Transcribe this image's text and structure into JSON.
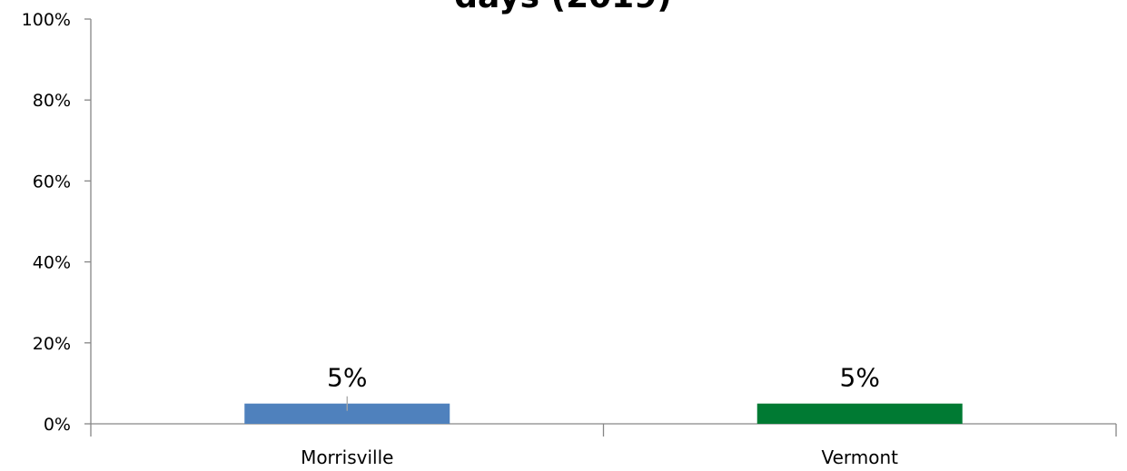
{
  "chart_data": {
    "type": "bar",
    "title": "days (2019)",
    "xlabel": "",
    "ylabel": "",
    "categories": [
      "Morrisville",
      "Vermont"
    ],
    "values": [
      5,
      5
    ],
    "data_labels": [
      "5%",
      "5%"
    ],
    "bar_colors": [
      "#4f81bd",
      "#007a33"
    ],
    "ylim": [
      0,
      100
    ],
    "yticks": [
      0,
      20,
      40,
      60,
      80,
      100
    ],
    "ytick_labels": [
      "0%",
      "20%",
      "40%",
      "60%",
      "80%",
      "100%"
    ],
    "grid": false,
    "legend": "none",
    "error_bars": [
      true,
      false
    ]
  }
}
